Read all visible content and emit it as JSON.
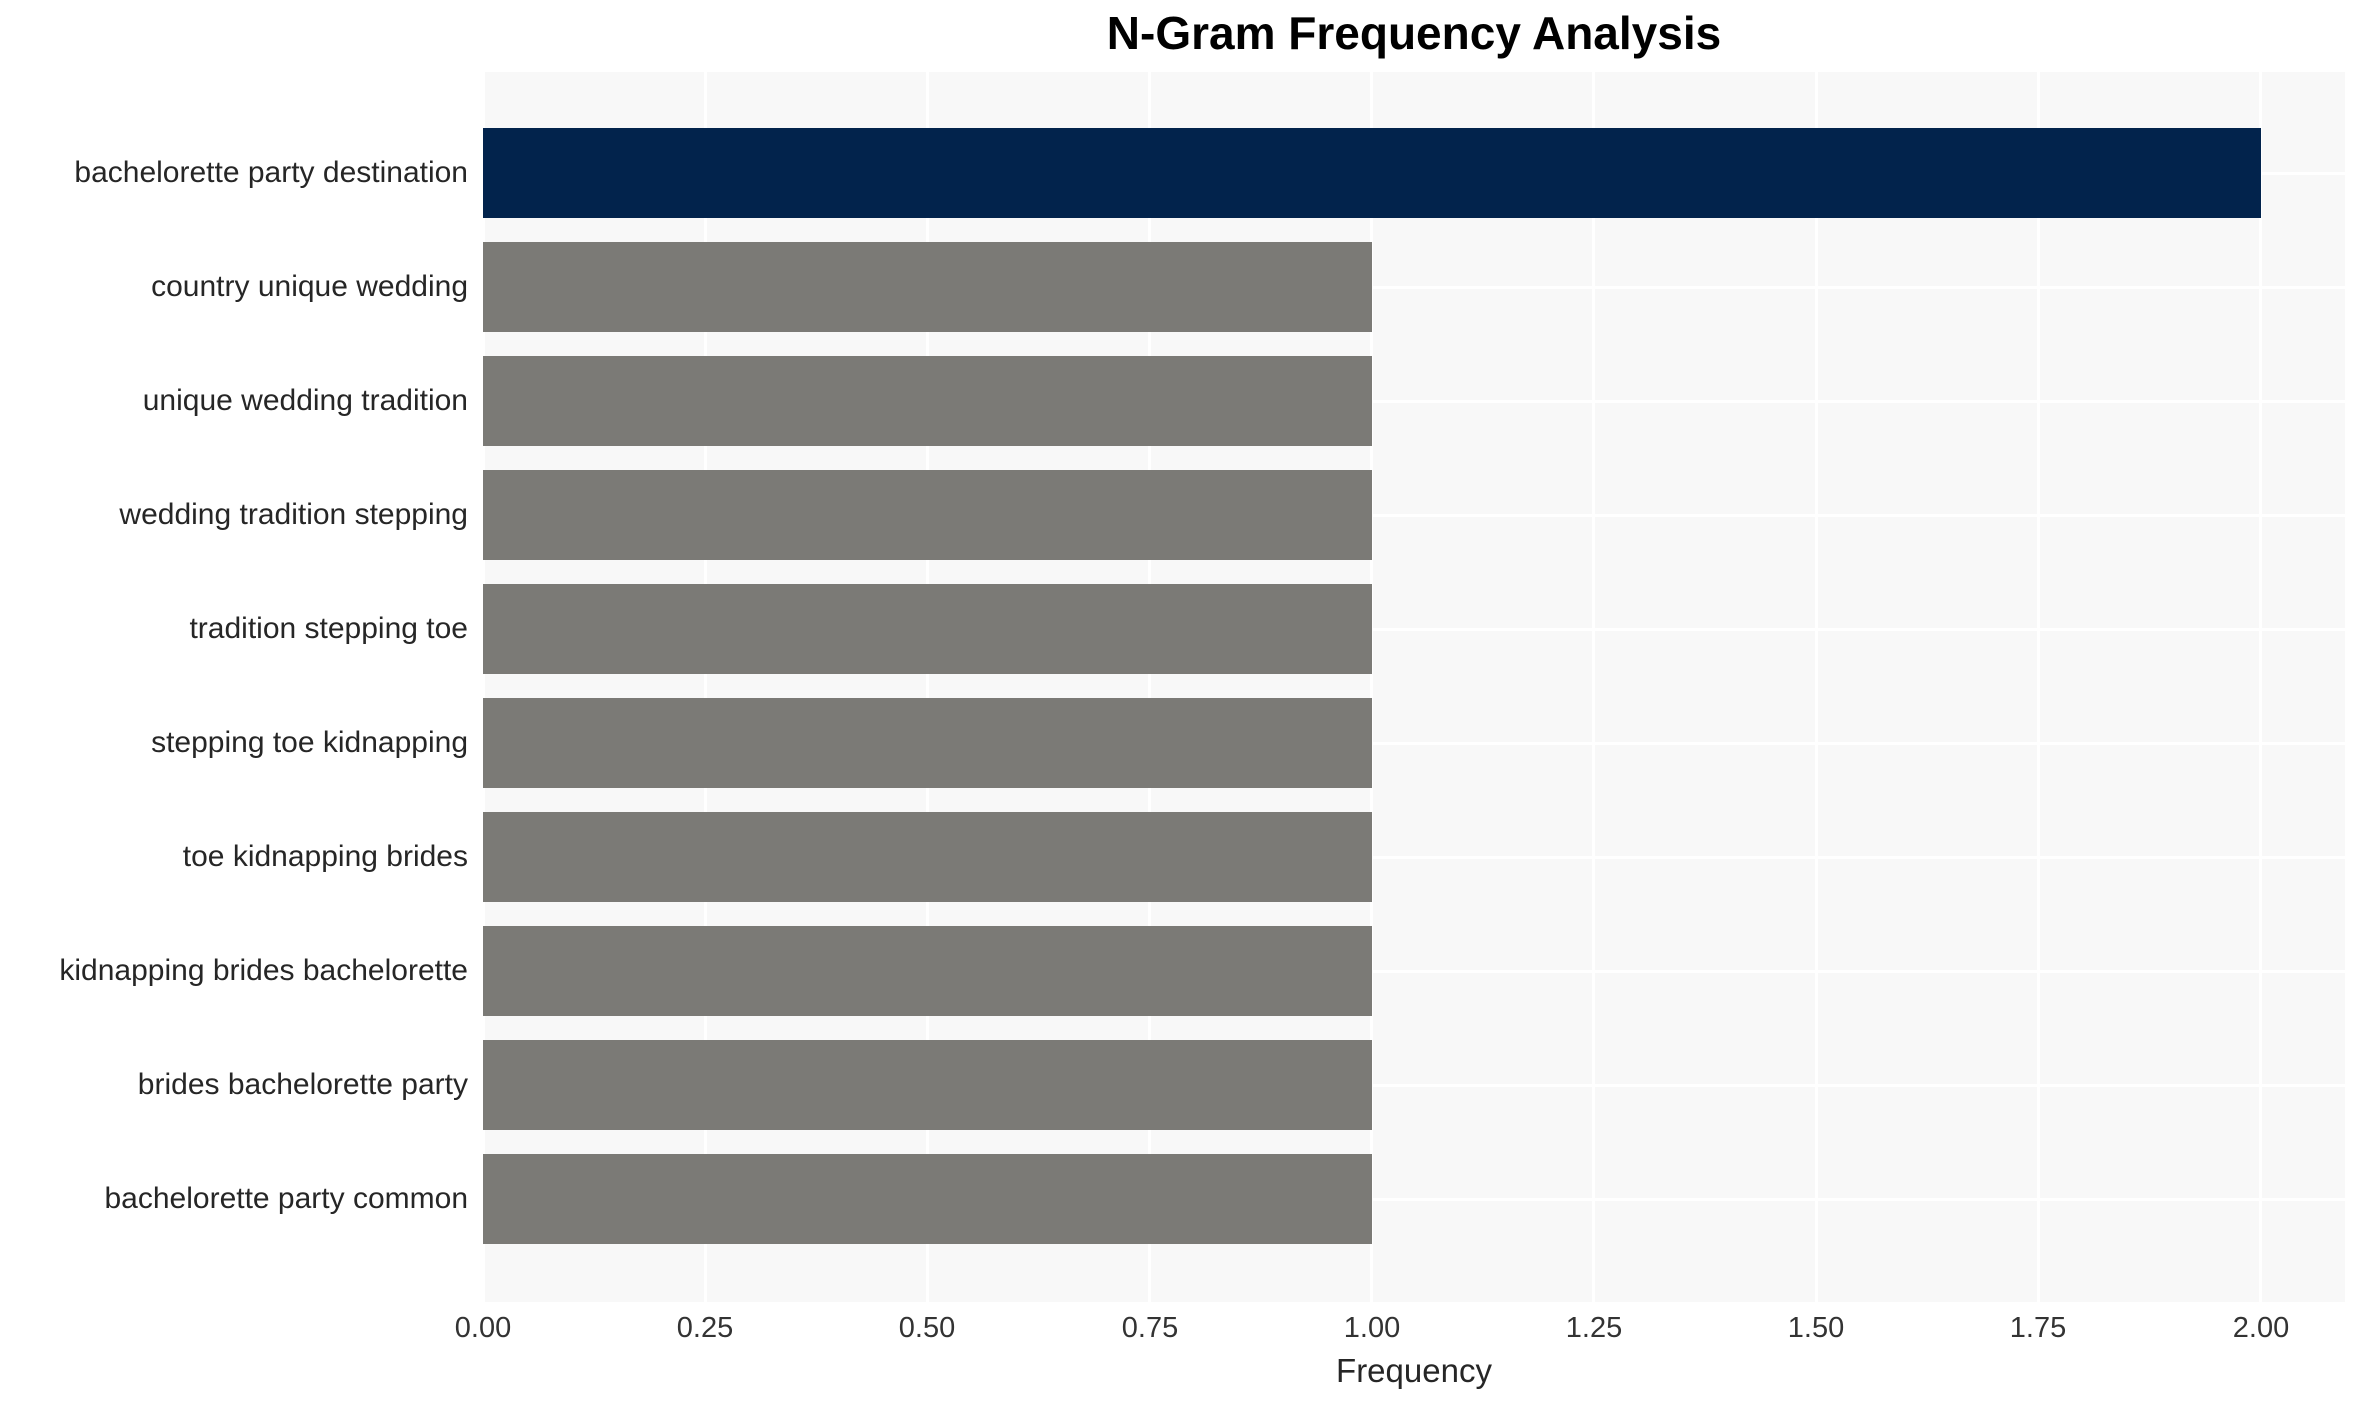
{
  "chart_data": {
    "type": "bar",
    "orientation": "horizontal",
    "title": "N-Gram Frequency Analysis",
    "xlabel": "Frequency",
    "ylabel": "",
    "categories": [
      "bachelorette party destination",
      "country unique wedding",
      "unique wedding tradition",
      "wedding tradition stepping",
      "tradition stepping toe",
      "stepping toe kidnapping",
      "toe kidnapping brides",
      "kidnapping brides bachelorette",
      "brides bachelorette party",
      "bachelorette party common"
    ],
    "values": [
      2,
      1,
      1,
      1,
      1,
      1,
      1,
      1,
      1,
      1
    ],
    "bar_colors": [
      "#02234c",
      "#7b7a76",
      "#7b7a76",
      "#7b7a76",
      "#7b7a76",
      "#7b7a76",
      "#7b7a76",
      "#7b7a76",
      "#7b7a76",
      "#7b7a76"
    ],
    "xlim": [
      0,
      2.095
    ],
    "xticks": [
      0,
      0.25,
      0.5,
      0.75,
      1,
      1.25,
      1.5,
      1.75,
      2
    ],
    "xtick_labels": [
      "0.00",
      "0.25",
      "0.50",
      "0.75",
      "1.00",
      "1.25",
      "1.50",
      "1.75",
      "2.00"
    ],
    "grid": "on",
    "legend": "none",
    "colors": {
      "highlight_bar": "#02234c",
      "default_bar": "#7b7a76",
      "plot_background": "#f8f8f8",
      "gridline": "#ffffff",
      "label_text": "#262626",
      "tick_text": "#333333",
      "title_text": "#000000"
    }
  }
}
